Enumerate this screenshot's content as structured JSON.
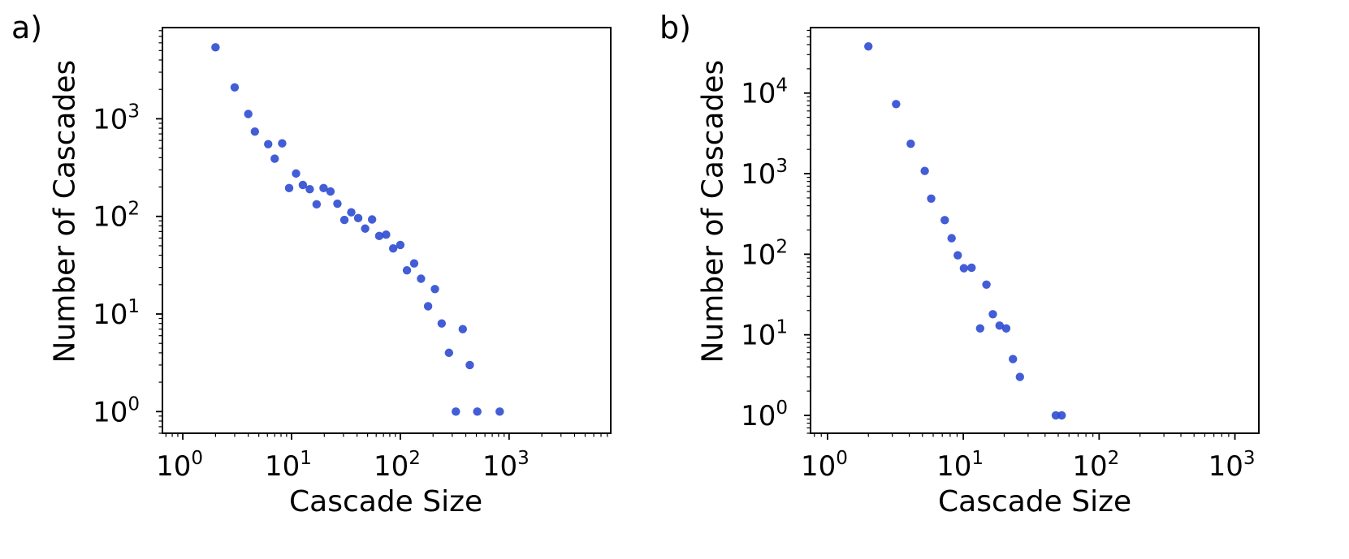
{
  "chart_data": [
    {
      "type": "scatter",
      "panel_label": "a)",
      "xlabel": "Cascade Size",
      "ylabel": "Number of Cascades",
      "xscale": "log",
      "yscale": "log",
      "xlim": [
        0.65,
        8600
      ],
      "ylim": [
        0.6,
        8600
      ],
      "xticks": [
        {
          "base": "10",
          "exp": "0",
          "value": 1
        },
        {
          "base": "10",
          "exp": "1",
          "value": 10
        },
        {
          "base": "10",
          "exp": "2",
          "value": 100
        },
        {
          "base": "10",
          "exp": "3",
          "value": 1000
        }
      ],
      "yticks": [
        {
          "base": "10",
          "exp": "0",
          "value": 1
        },
        {
          "base": "10",
          "exp": "1",
          "value": 10
        },
        {
          "base": "10",
          "exp": "2",
          "value": 100
        },
        {
          "base": "10",
          "exp": "3",
          "value": 1000
        }
      ],
      "marker_color": "#2d4bd1",
      "x": [
        2,
        3,
        4,
        4.6,
        6.1,
        7,
        8.2,
        9.5,
        11,
        12.7,
        14.7,
        17,
        19.7,
        22.8,
        26.4,
        30.6,
        35.4,
        41,
        47.5,
        55,
        64,
        74,
        86,
        100,
        115,
        134,
        155,
        180,
        208,
        240,
        280,
        324,
        375,
        435,
        510,
        820
      ],
      "y": [
        5400,
        2100,
        1120,
        740,
        550,
        390,
        560,
        195,
        275,
        210,
        190,
        133,
        195,
        180,
        135,
        92,
        110,
        96,
        75,
        93,
        63,
        65,
        47,
        51,
        28,
        33,
        23,
        12,
        18,
        8,
        4,
        1,
        7,
        3,
        1,
        1
      ]
    },
    {
      "type": "scatter",
      "panel_label": "b)",
      "xlabel": "Cascade Size",
      "ylabel": "Number of Cascades",
      "xscale": "log",
      "yscale": "log",
      "xlim": [
        0.75,
        1500
      ],
      "ylim": [
        0.6,
        65000
      ],
      "xticks": [
        {
          "base": "10",
          "exp": "0",
          "value": 1
        },
        {
          "base": "10",
          "exp": "1",
          "value": 10
        },
        {
          "base": "10",
          "exp": "2",
          "value": 100
        },
        {
          "base": "10",
          "exp": "3",
          "value": 1000
        }
      ],
      "yticks": [
        {
          "base": "10",
          "exp": "0",
          "value": 1
        },
        {
          "base": "10",
          "exp": "1",
          "value": 10
        },
        {
          "base": "10",
          "exp": "2",
          "value": 100
        },
        {
          "base": "10",
          "exp": "3",
          "value": 1000
        },
        {
          "base": "10",
          "exp": "4",
          "value": 10000
        }
      ],
      "marker_color": "#2d4bd1",
      "x": [
        2,
        3.2,
        4.1,
        5.2,
        5.8,
        7.3,
        8.2,
        9.1,
        10.1,
        11.5,
        13.3,
        14.8,
        16.5,
        18.5,
        20.7,
        23.2,
        26.1,
        48,
        53
      ],
      "y": [
        38000,
        7300,
        2350,
        1080,
        490,
        265,
        158,
        97,
        67,
        68,
        12,
        42,
        18,
        13,
        12,
        5,
        3,
        1,
        1
      ]
    }
  ]
}
